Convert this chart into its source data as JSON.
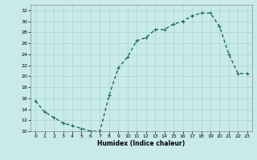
{
  "x": [
    0,
    1,
    2,
    3,
    4,
    5,
    6,
    7,
    8,
    9,
    10,
    11,
    12,
    13,
    14,
    15,
    16,
    17,
    18,
    19,
    20,
    21,
    22,
    23
  ],
  "y": [
    15.5,
    13.5,
    12.5,
    11.5,
    11.0,
    10.5,
    10.0,
    10.0,
    16.5,
    21.5,
    23.5,
    26.5,
    27.0,
    28.5,
    28.5,
    29.5,
    30.0,
    31.0,
    31.5,
    31.5,
    29.0,
    24.0,
    20.5,
    20.5
  ],
  "xlabel": "Humidex (Indice chaleur)",
  "color": "#1a6b5a",
  "bg_color": "#c8eaea",
  "grid_color": "#aad4d4",
  "ylim": [
    10,
    33
  ],
  "xlim": [
    -0.5,
    23.5
  ],
  "yticks": [
    10,
    12,
    14,
    16,
    18,
    20,
    22,
    24,
    26,
    28,
    30,
    32
  ],
  "xticks": [
    0,
    1,
    2,
    3,
    4,
    5,
    6,
    7,
    8,
    9,
    10,
    11,
    12,
    13,
    14,
    15,
    16,
    17,
    18,
    19,
    20,
    21,
    22,
    23
  ],
  "markersize": 2.5,
  "linewidth": 1.0
}
